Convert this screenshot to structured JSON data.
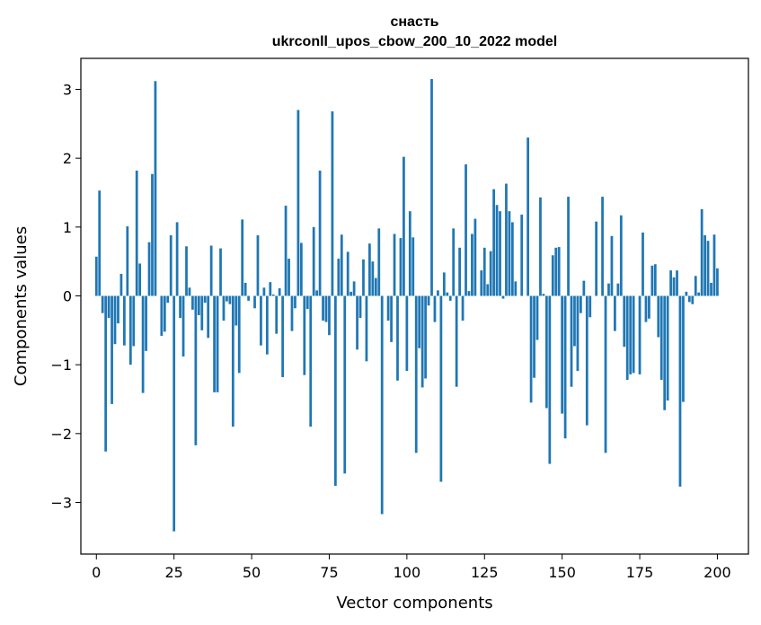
{
  "chart_data": {
    "type": "bar",
    "title_line1": "снасть",
    "title_line2": "ukrconll_upos_cbow_200_10_2022 model",
    "xlabel": "Vector components",
    "ylabel": "Components values",
    "xlim": [
      -5,
      210
    ],
    "ylim": [
      -3.75,
      3.45
    ],
    "xticks": [
      0,
      25,
      50,
      75,
      100,
      125,
      150,
      175,
      200
    ],
    "yticks": [
      -3,
      -2,
      -1,
      0,
      1,
      2,
      3
    ],
    "xtick_labels": [
      "0",
      "25",
      "50",
      "75",
      "100",
      "125",
      "150",
      "175",
      "200"
    ],
    "ytick_labels": [
      "−3",
      "−2",
      "−1",
      "0",
      "1",
      "2",
      "3"
    ],
    "grid": false,
    "bar_color": "#1f77b4",
    "values": [
      0.57,
      1.53,
      -0.25,
      -2.26,
      -0.32,
      -1.57,
      -0.7,
      -0.4,
      0.32,
      -0.72,
      1.01,
      -1.0,
      -0.73,
      1.82,
      0.47,
      -1.41,
      -0.8,
      0.78,
      1.77,
      3.12,
      0.0,
      -0.58,
      -0.52,
      -0.1,
      0.88,
      -3.42,
      1.07,
      -0.32,
      -0.88,
      0.72,
      0.12,
      -0.2,
      -2.17,
      -0.28,
      -0.5,
      -0.1,
      -0.61,
      0.73,
      -1.4,
      -1.4,
      0.69,
      -0.36,
      -0.08,
      -0.12,
      -1.9,
      -0.43,
      -1.12,
      1.11,
      0.19,
      -0.07,
      0.0,
      -0.18,
      0.88,
      -0.72,
      0.12,
      -0.85,
      0.2,
      0.02,
      -0.55,
      0.11,
      -1.18,
      1.31,
      0.54,
      -0.51,
      -0.18,
      2.7,
      0.77,
      -1.15,
      -0.19,
      -1.9,
      1.0,
      0.08,
      1.82,
      -0.36,
      -0.38,
      -0.57,
      2.68,
      -2.76,
      0.54,
      0.89,
      -2.58,
      0.64,
      0.06,
      0.21,
      -0.78,
      -0.32,
      0.53,
      -0.95,
      0.76,
      0.5,
      0.26,
      0.98,
      -3.17,
      0.0,
      -0.36,
      -0.67,
      0.9,
      -1.23,
      0.84,
      2.02,
      -1.09,
      1.23,
      0.85,
      -2.28,
      -0.76,
      -1.33,
      -1.2,
      -0.14,
      3.15,
      -0.38,
      0.08,
      -2.7,
      0.34,
      0.05,
      -0.07,
      0.98,
      -1.32,
      0.7,
      -0.36,
      1.91,
      0.07,
      0.9,
      1.12,
      0.0,
      0.37,
      0.7,
      0.17,
      0.65,
      1.55,
      1.32,
      1.23,
      -0.04,
      1.63,
      1.23,
      1.07,
      0.21,
      0.0,
      1.18,
      0.0,
      2.3,
      -1.55,
      -1.19,
      -0.64,
      1.43,
      0.03,
      -1.63,
      -2.44,
      0.59,
      0.7,
      0.71,
      -1.71,
      -2.07,
      1.44,
      -1.32,
      -0.73,
      -1.09,
      -0.25,
      0.22,
      -1.88,
      -0.31,
      0.0,
      1.08,
      0.0,
      1.44,
      -2.28,
      0.18,
      0.87,
      -0.51,
      0.18,
      1.17,
      -0.74,
      -1.22,
      -1.14,
      -1.12,
      0.0,
      -1.14,
      0.92,
      -0.38,
      -0.33,
      0.44,
      0.46,
      -0.6,
      -1.22,
      -1.66,
      -1.52,
      0.37,
      0.27,
      0.37,
      -2.77,
      -1.54,
      0.06,
      -0.09,
      -0.12,
      0.29,
      0.05,
      1.26,
      0.88,
      0.8,
      0.19,
      0.89,
      0.4
    ]
  }
}
